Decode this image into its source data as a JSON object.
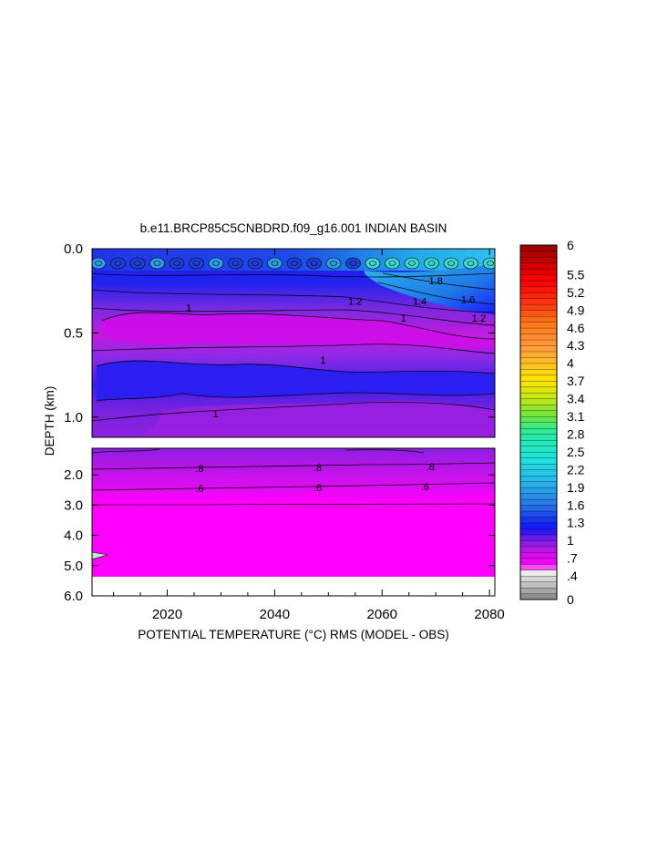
{
  "chart_data": {
    "type": "heatmap",
    "title": "b.e11.BRCP85C5CNBDRD.f09_g16.001 INDIAN BASIN",
    "xlabel": "POTENTIAL TEMPERATURE (°C) RMS (MODEL - OBS)",
    "ylabel": "DEPTH (km)",
    "x_ticks": [
      "2020",
      "2040",
      "2060",
      "2080"
    ],
    "x_tick_values": [
      2020,
      2040,
      2060,
      2080
    ],
    "xlim": [
      2006,
      2081
    ],
    "upper_panel": {
      "ylim": [
        0.0,
        1.12
      ],
      "y_ticks": [
        "0.0",
        "0.5",
        "1.0"
      ],
      "y_tick_values": [
        0.0,
        0.5,
        1.0
      ],
      "contour_labels": [
        {
          "text": "1.8",
          "x": 2070,
          "z": 0.19
        },
        {
          "text": "1.6",
          "x": 2076,
          "z": 0.3
        },
        {
          "text": "1.4",
          "x": 2067,
          "z": 0.31
        },
        {
          "text": "1.2",
          "x": 2055,
          "z": 0.31
        },
        {
          "text": "1.2",
          "x": 2078,
          "z": 0.41
        },
        {
          "text": "1",
          "x": 2024,
          "z": 0.35
        },
        {
          "text": "1",
          "x": 2049,
          "z": 0.66
        },
        {
          "text": "1",
          "x": 2029,
          "z": 0.98
        },
        {
          "text": "1",
          "x": 2064,
          "z": 0.41
        }
      ]
    },
    "lower_panel": {
      "ylim": [
        1.12,
        6.0
      ],
      "y_ticks": [
        "2.0",
        "3.0",
        "4.0",
        "5.0",
        "6.0"
      ],
      "y_tick_values": [
        2.0,
        3.0,
        4.0,
        5.0,
        6.0
      ],
      "data_bottom": 5.35,
      "contour_labels": [
        {
          "text": ".8",
          "x": 2026,
          "z": 1.78
        },
        {
          "text": ".8",
          "x": 2048,
          "z": 1.75
        },
        {
          "text": ".8",
          "x": 2069,
          "z": 1.72
        },
        {
          "text": ".6",
          "x": 2026,
          "z": 2.45
        },
        {
          "text": ".6",
          "x": 2048,
          "z": 2.42
        },
        {
          "text": ".6",
          "x": 2068,
          "z": 2.38
        }
      ]
    },
    "colorbar": {
      "min": 0,
      "max": 6,
      "labels": [
        "6",
        "5.5",
        "5.2",
        "4.9",
        "4.6",
        "4.3",
        "4",
        "3.7",
        "3.4",
        "3.1",
        "2.8",
        "2.5",
        "2.2",
        "1.9",
        "1.6",
        "1.3",
        "1",
        ".7",
        ".4",
        "0"
      ],
      "label_values": [
        6,
        5.5,
        5.2,
        4.9,
        4.6,
        4.3,
        4.0,
        3.7,
        3.4,
        3.1,
        2.8,
        2.5,
        2.2,
        1.9,
        1.6,
        1.3,
        1.0,
        0.7,
        0.4,
        0
      ]
    },
    "grid": false
  }
}
